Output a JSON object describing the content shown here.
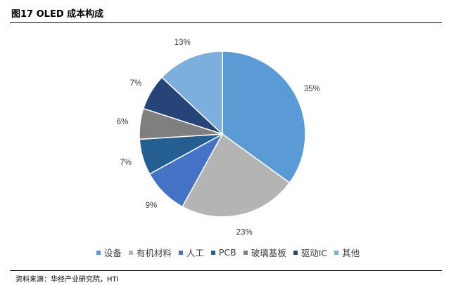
{
  "figure": {
    "title": "图17 OLED 成本构成",
    "source": "资料来源：华经产业研究院，HTI"
  },
  "chart_data": {
    "type": "pie",
    "title": "",
    "categories": [
      "设备",
      "有机材料",
      "人工",
      "PCB",
      "玻璃基板",
      "驱动IC",
      "其他"
    ],
    "values": [
      35,
      23,
      9,
      7,
      6,
      7,
      13
    ],
    "labels": [
      "35%",
      "23%",
      "9%",
      "7%",
      "6%",
      "7%",
      "13%"
    ],
    "colors": [
      "#5B9BD5",
      "#B4B4B4",
      "#4472C4",
      "#255E91",
      "#7F7F7F",
      "#264478",
      "#7DAFDD"
    ],
    "legend_position": "bottom",
    "start_angle": "12 o'clock",
    "direction": "clockwise"
  }
}
